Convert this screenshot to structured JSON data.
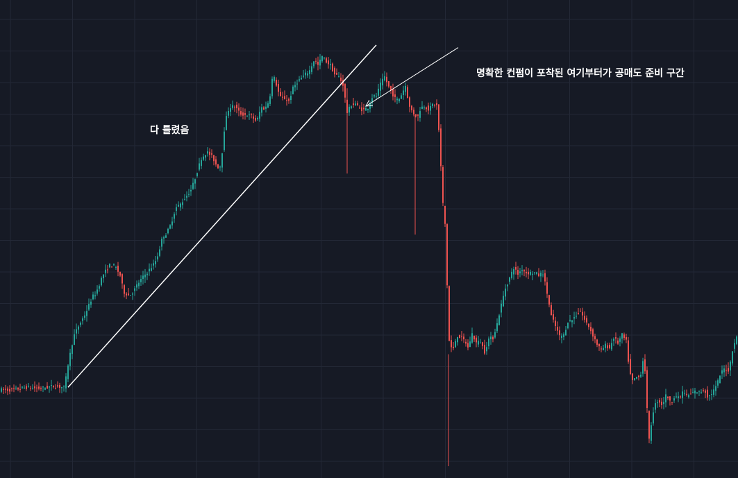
{
  "chart_data": {
    "type": "candlestick",
    "colors": {
      "up": "#26a69a",
      "down": "#ef5350",
      "background": "#161a25",
      "grid": "#232836",
      "annotation": "#ffffff"
    },
    "grid": true,
    "annotations": {
      "left_text": "다 틀렸음",
      "right_text": "명확한 컨펌이 포착된 여기부터가 공매도 준비 구간"
    },
    "path": [
      [
        0,
        60
      ],
      [
        20,
        60
      ],
      [
        40,
        62
      ],
      [
        60,
        61
      ],
      [
        80,
        63
      ],
      [
        95,
        62
      ],
      [
        100,
        80
      ],
      [
        108,
        102
      ],
      [
        115,
        110
      ],
      [
        125,
        120
      ],
      [
        135,
        133
      ],
      [
        140,
        136
      ],
      [
        150,
        150
      ],
      [
        160,
        158
      ],
      [
        168,
        157
      ],
      [
        175,
        150
      ],
      [
        180,
        137
      ],
      [
        188,
        134
      ],
      [
        195,
        138
      ],
      [
        200,
        143
      ],
      [
        210,
        150
      ],
      [
        218,
        155
      ],
      [
        225,
        160
      ],
      [
        230,
        167
      ],
      [
        236,
        180
      ],
      [
        242,
        183
      ],
      [
        248,
        190
      ],
      [
        255,
        203
      ],
      [
        262,
        206
      ],
      [
        270,
        212
      ],
      [
        278,
        218
      ],
      [
        285,
        230
      ],
      [
        292,
        242
      ],
      [
        300,
        247
      ],
      [
        308,
        243
      ],
      [
        315,
        235
      ],
      [
        320,
        236
      ],
      [
        326,
        270
      ],
      [
        332,
        282
      ],
      [
        340,
        283
      ],
      [
        348,
        277
      ],
      [
        356,
        276
      ],
      [
        364,
        275
      ],
      [
        372,
        271
      ],
      [
        378,
        282
      ],
      [
        384,
        281
      ],
      [
        390,
        288
      ],
      [
        395,
        308
      ],
      [
        400,
        300
      ],
      [
        405,
        290
      ],
      [
        412,
        289
      ],
      [
        418,
        287
      ],
      [
        424,
        297
      ],
      [
        430,
        302
      ],
      [
        436,
        305
      ],
      [
        442,
        308
      ],
      [
        448,
        311
      ],
      [
        455,
        320
      ],
      [
        460,
        315
      ],
      [
        466,
        322
      ],
      [
        472,
        318
      ],
      [
        478,
        315
      ],
      [
        484,
        308
      ],
      [
        490,
        306
      ],
      [
        496,
        300
      ],
      [
        502,
        278
      ],
      [
        508,
        284
      ],
      [
        514,
        285
      ],
      [
        520,
        281
      ],
      [
        526,
        280
      ],
      [
        532,
        282
      ],
      [
        538,
        290
      ],
      [
        544,
        291
      ],
      [
        550,
        300
      ],
      [
        556,
        306
      ],
      [
        562,
        298
      ],
      [
        566,
        294
      ],
      [
        572,
        288
      ],
      [
        576,
        288
      ],
      [
        580,
        292
      ],
      [
        586,
        299
      ],
      [
        592,
        282
      ],
      [
        598,
        277
      ],
      [
        604,
        275
      ],
      [
        608,
        282
      ],
      [
        614,
        283
      ],
      [
        620,
        280
      ],
      [
        626,
        285
      ],
      [
        632,
        283
      ],
      [
        636,
        245
      ],
      [
        640,
        206
      ],
      [
        644,
        185
      ],
      [
        648,
        100
      ],
      [
        654,
        90
      ],
      [
        660,
        103
      ],
      [
        666,
        101
      ],
      [
        672,
        98
      ],
      [
        676,
        93
      ],
      [
        682,
        104
      ],
      [
        688,
        97
      ],
      [
        694,
        98
      ],
      [
        700,
        90
      ],
      [
        706,
        100
      ],
      [
        712,
        101
      ],
      [
        718,
        112
      ],
      [
        724,
        127
      ],
      [
        730,
        140
      ],
      [
        736,
        148
      ],
      [
        742,
        156
      ],
      [
        748,
        151
      ],
      [
        754,
        155
      ],
      [
        760,
        152
      ],
      [
        766,
        152
      ],
      [
        772,
        152
      ],
      [
        778,
        150
      ],
      [
        784,
        152
      ],
      [
        790,
        136
      ],
      [
        796,
        118
      ],
      [
        802,
        110
      ],
      [
        808,
        102
      ],
      [
        814,
        103
      ],
      [
        820,
        114
      ],
      [
        826,
        115
      ],
      [
        832,
        119
      ],
      [
        838,
        122
      ],
      [
        844,
        115
      ],
      [
        850,
        110
      ],
      [
        856,
        103
      ],
      [
        862,
        96
      ],
      [
        868,
        91
      ],
      [
        874,
        95
      ],
      [
        880,
        93
      ],
      [
        886,
        101
      ],
      [
        892,
        97
      ],
      [
        898,
        103
      ],
      [
        904,
        98
      ],
      [
        908,
        78
      ],
      [
        912,
        66
      ],
      [
        918,
        70
      ],
      [
        924,
        70
      ],
      [
        928,
        83
      ],
      [
        932,
        73
      ],
      [
        936,
        16
      ],
      [
        940,
        33
      ],
      [
        944,
        47
      ],
      [
        950,
        52
      ],
      [
        956,
        48
      ],
      [
        962,
        57
      ],
      [
        968,
        49
      ],
      [
        974,
        56
      ],
      [
        980,
        53
      ],
      [
        986,
        59
      ],
      [
        992,
        55
      ],
      [
        998,
        57
      ],
      [
        1004,
        59
      ],
      [
        1010,
        58
      ],
      [
        1016,
        61
      ],
      [
        1022,
        54
      ],
      [
        1028,
        58
      ],
      [
        1034,
        63
      ],
      [
        1040,
        73
      ],
      [
        1046,
        77
      ],
      [
        1052,
        75
      ],
      [
        1058,
        95
      ],
      [
        1063,
        101
      ]
    ],
    "wicks": [
      [
        646,
        0,
        88
      ],
      [
        598,
        182,
        276
      ],
      [
        500,
        230,
        297
      ]
    ],
    "trendline": {
      "x": [
        98,
        542
      ],
      "y": [
        62,
        331
      ]
    },
    "arrow": {
      "x": [
        660,
        527
      ],
      "y": [
        329,
        283
      ]
    },
    "ylim": [
      0,
      350
    ],
    "xlim": [
      0,
      1063
    ]
  }
}
